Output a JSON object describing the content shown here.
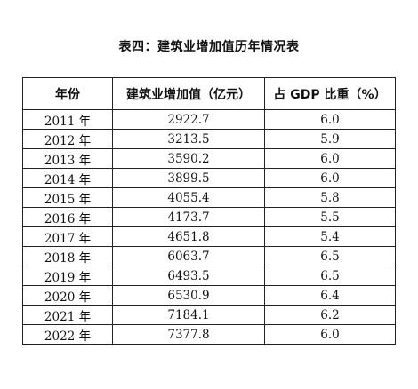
{
  "title": "表四：建筑业增加值历年情况表",
  "headers": [
    "年份",
    "建筑业增加值（亿元）",
    "占 GDP 比重（%）"
  ],
  "rows": [
    {
      "year": "2011 年",
      "value": "2922.7",
      "share": "6.0"
    },
    {
      "year": "2012 年",
      "value": "3213.5",
      "share": "5.9"
    },
    {
      "year": "2013 年",
      "value": "3590.2",
      "share": "6.0"
    },
    {
      "year": "2014 年",
      "value": "3899.5",
      "share": "6.0"
    },
    {
      "year": "2015 年",
      "value": "4055.4",
      "share": "5.8"
    },
    {
      "year": "2016 年",
      "value": "4173.7",
      "share": "5.5"
    },
    {
      "year": "2017 年",
      "value": "4651.8",
      "share": "5.4"
    },
    {
      "year": "2018 年",
      "value": "6063.7",
      "share": "6.5"
    },
    {
      "year": "2019 年",
      "value": "6493.5",
      "share": "6.5"
    },
    {
      "year": "2020 年",
      "value": "6530.9",
      "share": "6.4"
    },
    {
      "year": "2021 年",
      "value": "7184.1",
      "share": "6.2"
    },
    {
      "year": "2022 年",
      "value": "7377.8",
      "share": "6.0"
    }
  ]
}
